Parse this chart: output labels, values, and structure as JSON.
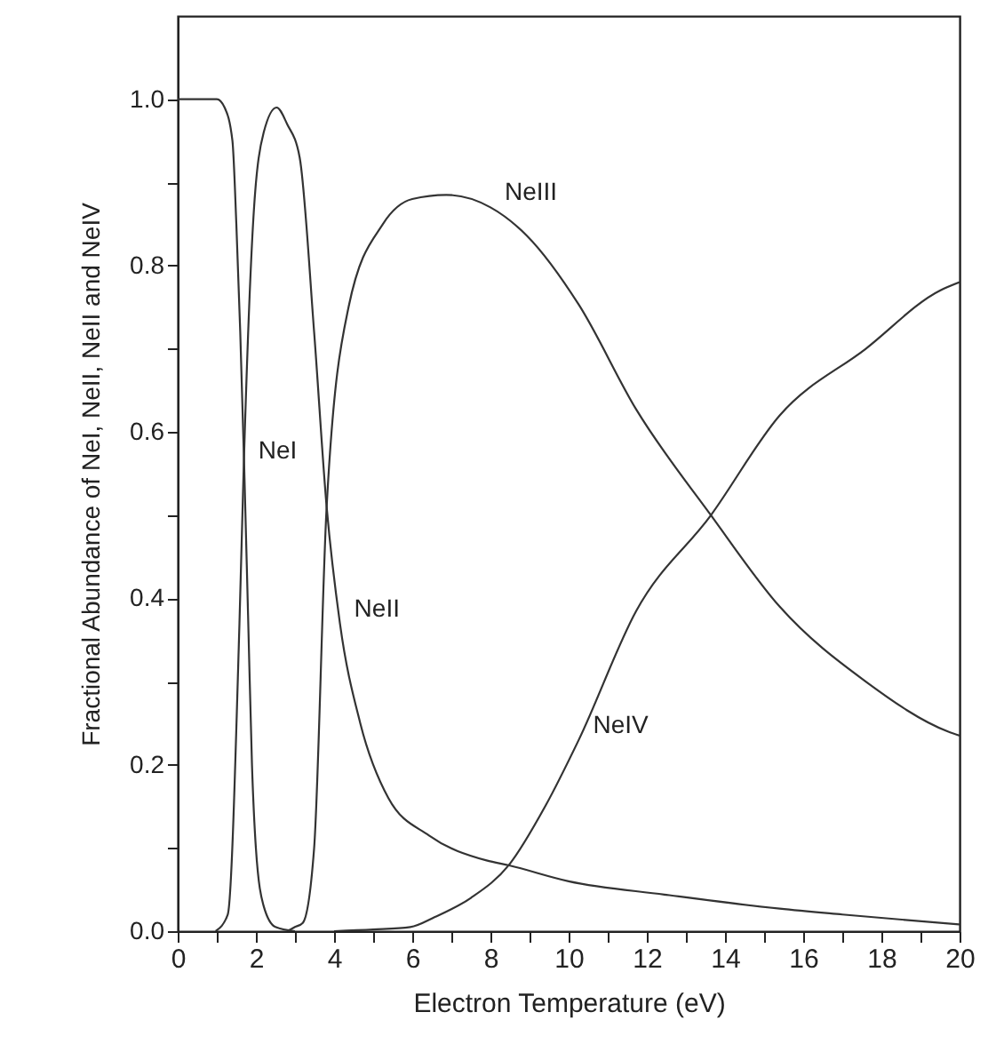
{
  "chart_data": {
    "type": "line",
    "xlabel": "Electron Temperature (eV)",
    "ylabel": "Fractional Abundance of NeI, NeII, NeII and NeIV",
    "xlim": [
      0,
      20
    ],
    "ylim": [
      0,
      1.1
    ],
    "xticks": [
      0,
      {
        "value": 1,
        "label": null
      },
      2,
      {
        "value": 3,
        "label": null
      },
      4,
      {
        "value": 5,
        "label": null
      },
      6,
      {
        "value": 7,
        "label": null
      },
      8,
      {
        "value": 9,
        "label": null
      },
      10,
      {
        "value": 11,
        "label": null
      },
      12,
      {
        "value": 13,
        "label": null
      },
      14,
      {
        "value": 15,
        "label": null
      },
      16,
      {
        "value": 17,
        "label": null
      },
      18,
      {
        "value": 19,
        "label": null
      },
      20
    ],
    "yticks": [
      {
        "value": 0,
        "label": "0.0"
      },
      {
        "value": 0.1,
        "label": null
      },
      {
        "value": 0.2,
        "label": "0.2"
      },
      {
        "value": 0.3,
        "label": null
      },
      {
        "value": 0.4,
        "label": "0.4"
      },
      {
        "value": 0.5,
        "label": null
      },
      {
        "value": 0.6,
        "label": "0.6"
      },
      {
        "value": 0.7,
        "label": null
      },
      {
        "value": 0.8,
        "label": "0.8"
      },
      {
        "value": 0.9,
        "label": null
      },
      {
        "value": 1,
        "label": "1.0"
      }
    ],
    "grid": false,
    "marker": "none",
    "line_style": "solid",
    "series": [
      {
        "name": "NeI",
        "color": "#333333",
        "x": [
          0,
          1,
          1.2,
          1.4,
          1.5,
          1.6,
          1.7,
          1.8,
          1.9,
          2,
          2.2,
          2.5,
          3
        ],
        "values": [
          1,
          1,
          0.99,
          0.95,
          0.85,
          0.72,
          0.56,
          0.38,
          0.2,
          0.1,
          0.03,
          0.005,
          0
        ]
      },
      {
        "name": "NeII",
        "color": "#333333",
        "x": [
          0.97,
          1.28,
          1.58,
          1.69,
          1.94,
          2.2,
          2.53,
          2.8,
          3.12,
          3.49,
          3.81,
          4.15,
          4.67,
          5.39,
          6.43,
          7.9,
          8.48,
          10,
          12.45,
          15.4,
          17,
          20
        ],
        "values": [
          0,
          0.02,
          0.37,
          0.56,
          0.86,
          0.96,
          0.99,
          0.97,
          0.93,
          0.72,
          0.51,
          0.37,
          0.25,
          0.16,
          0.115,
          0.085,
          0.079,
          0.06,
          0.044,
          0.027,
          0.02,
          0.008
        ]
      },
      {
        "name": "NeIII",
        "color": "#333333",
        "x": [
          2.8,
          3,
          3.2,
          3.49,
          3.81,
          4.37,
          5.25,
          6,
          6.87,
          8,
          8.93,
          10.26,
          11.73,
          13.64,
          15.4,
          17.6,
          19.7,
          20
        ],
        "values": [
          0,
          0.005,
          0.01,
          0.1,
          0.51,
          0.75,
          0.85,
          0.88,
          0.885,
          0.87,
          0.836,
          0.753,
          0.627,
          0.5,
          0.39,
          0.3,
          0.24,
          0.235
        ]
      },
      {
        "name": "NeIV",
        "color": "#333333",
        "x": [
          4,
          5,
          5.95,
          6.58,
          7.5,
          8.48,
          9.4,
          10.26,
          11.73,
          13.64,
          15.4,
          17.6,
          19.5,
          20
        ],
        "values": [
          0,
          0.002,
          0.005,
          0.017,
          0.04,
          0.08,
          0.15,
          0.23,
          0.385,
          0.5,
          0.62,
          0.7,
          0.77,
          0.78
        ]
      }
    ]
  }
}
